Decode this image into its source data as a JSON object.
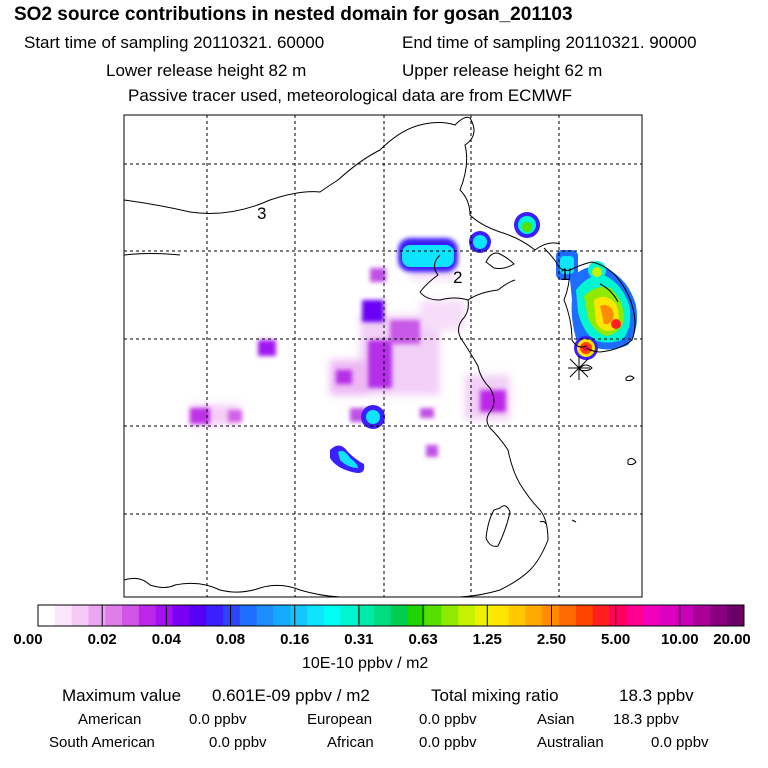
{
  "header": {
    "title": "SO2 source contributions in nested domain for gosan_201103",
    "start_time": "Start time of sampling 20110321. 60000",
    "end_time": "End time of sampling 20110321. 90000",
    "lower_release": "Lower release height   82 m",
    "upper_release": "Upper release height   62 m",
    "note": "Passive tracer used, meteorological data are from ECMWF"
  },
  "map": {
    "region_labels": [
      "3",
      "2",
      "1"
    ],
    "receptor_marker": "star-marker"
  },
  "colorbar": {
    "ticks": [
      "0.00",
      "0.02",
      "0.04",
      "0.08",
      "0.16",
      "0.31",
      "0.63",
      "1.25",
      "2.50",
      "5.00",
      "10.00",
      "20.00"
    ],
    "colors": [
      "#ffffff",
      "#fbe6fb",
      "#f5cbf5",
      "#eaa6f0",
      "#df7ee8",
      "#d054e6",
      "#bd25e8",
      "#a40ff3",
      "#7a00f5",
      "#5600f5",
      "#3c1fff",
      "#2e45ff",
      "#1f6dff",
      "#1c8cff",
      "#15a9ff",
      "#12c5ff",
      "#0fe4ff",
      "#00fff2",
      "#00f5d0",
      "#00eaa8",
      "#00dd7e",
      "#00cc4e",
      "#1fd400",
      "#55e000",
      "#8eea00",
      "#c4f200",
      "#eef200",
      "#ffe600",
      "#ffc800",
      "#ffaa00",
      "#ff8c00",
      "#ff6a00",
      "#ff4400",
      "#ff1f1f",
      "#ff005a",
      "#ff0090",
      "#f000b8",
      "#dc00c0",
      "#c800b8",
      "#a80098",
      "#880080",
      "#6a0068"
    ],
    "unit": "10E-10 ppbv / m2"
  },
  "summary": {
    "max_label": "Maximum value",
    "max_value": "0.601E-09 ppbv / m2",
    "total_label": "Total mixing ratio",
    "total_value": "18.3 ppbv",
    "regions": [
      {
        "name": "American",
        "value": "0.0 ppbv"
      },
      {
        "name": "European",
        "value": "0.0 ppbv"
      },
      {
        "name": "Asian",
        "value": "18.3 ppbv"
      },
      {
        "name": "South American",
        "value": "0.0 ppbv"
      },
      {
        "name": "African",
        "value": "0.0 ppbv"
      },
      {
        "name": "Australian",
        "value": "0.0 ppbv"
      }
    ]
  }
}
